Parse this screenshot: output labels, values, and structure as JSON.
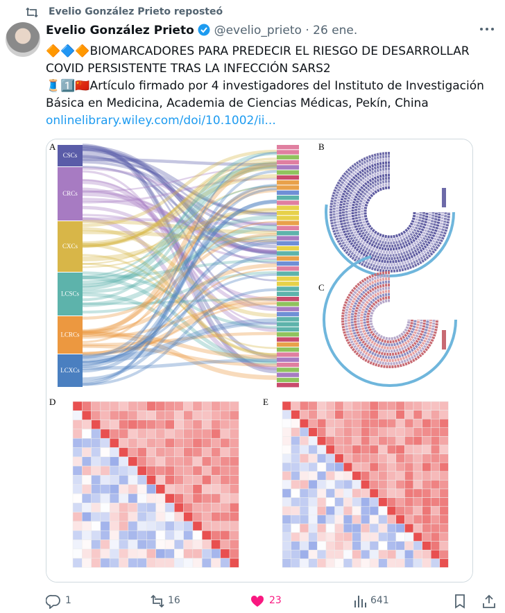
{
  "repost": {
    "text": "Evelio González Prieto reposteó"
  },
  "post": {
    "author": "Evelio González Prieto",
    "handle": "@evelio_prieto",
    "separator": "·",
    "date": "26 ene.",
    "paragraphs": [
      "🔶🔷🔶BIOMARCADORES PARA PREDECIR EL RIESGO DE DESARROLLAR COVID PERSISTENTE TRAS LA INFECCIÓN SARS2",
      "🧵1️⃣🇨🇳Artículo firmado por 4 investigadores del Instituto de Investigación Básica en Medicina, Academia de Ciencias Médicas, Pekín, China"
    ],
    "link": "onlinelibrary.wiley.com/doi/10.1002/ii..."
  },
  "figure": {
    "panels": [
      "A",
      "B",
      "C",
      "D",
      "E"
    ],
    "sankey_groups": [
      "CSCs",
      "CRCs",
      "CXCs",
      "LCSCs",
      "LCRCs",
      "LCXCs"
    ]
  },
  "actions": {
    "replies": 1,
    "reposts": 16,
    "likes": 23,
    "views": 641
  }
}
